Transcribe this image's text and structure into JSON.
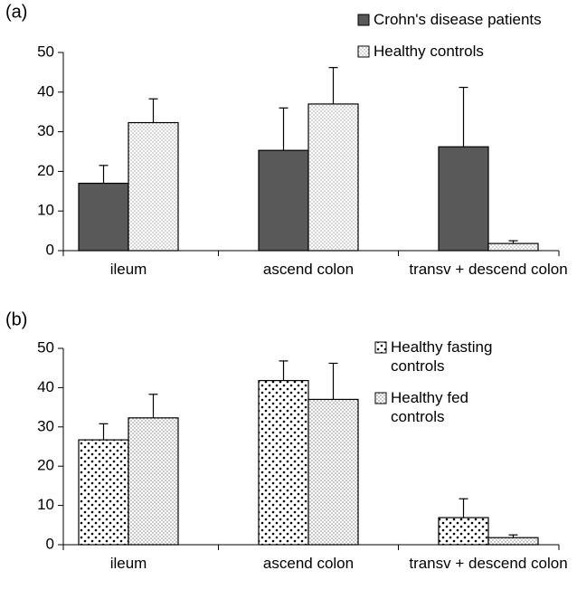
{
  "chart_data": [
    {
      "type": "bar",
      "label": "(a)",
      "categories": [
        "ileum",
        "ascend colon",
        "transv + descend colon"
      ],
      "series": [
        {
          "name": "Crohn's disease patients",
          "color": "#595959",
          "pattern": "solid",
          "values": [
            17,
            25.3,
            26.2
          ],
          "errors": [
            4.5,
            10.7,
            15
          ]
        },
        {
          "name": "Healthy controls",
          "color": "#9a9a9a",
          "pattern": "fine-dots",
          "values": [
            32.3,
            37,
            1.8
          ],
          "errors": [
            6,
            9.2,
            0.7
          ]
        }
      ],
      "ylim": [
        0,
        50
      ],
      "yticks": [
        0,
        10,
        20,
        30,
        40,
        50
      ],
      "legend": "upper right"
    },
    {
      "type": "bar",
      "label": "(b)",
      "categories": [
        "ileum",
        "ascend colon",
        "transv + descend colon"
      ],
      "series": [
        {
          "name": "Healthy fasting controls",
          "color": "#000000",
          "pattern": "coarse-dots",
          "values": [
            26.7,
            41.8,
            6.9
          ],
          "errors": [
            4.1,
            5,
            4.8
          ]
        },
        {
          "name": "Healthy fed controls",
          "color": "#7a7a7a",
          "pattern": "fine-dots",
          "values": [
            32.3,
            37,
            1.8
          ],
          "errors": [
            6,
            9.2,
            0.7
          ]
        }
      ],
      "ylim": [
        0,
        50
      ],
      "yticks": [
        0,
        10,
        20,
        30,
        40,
        50
      ],
      "legend": "upper right"
    }
  ]
}
